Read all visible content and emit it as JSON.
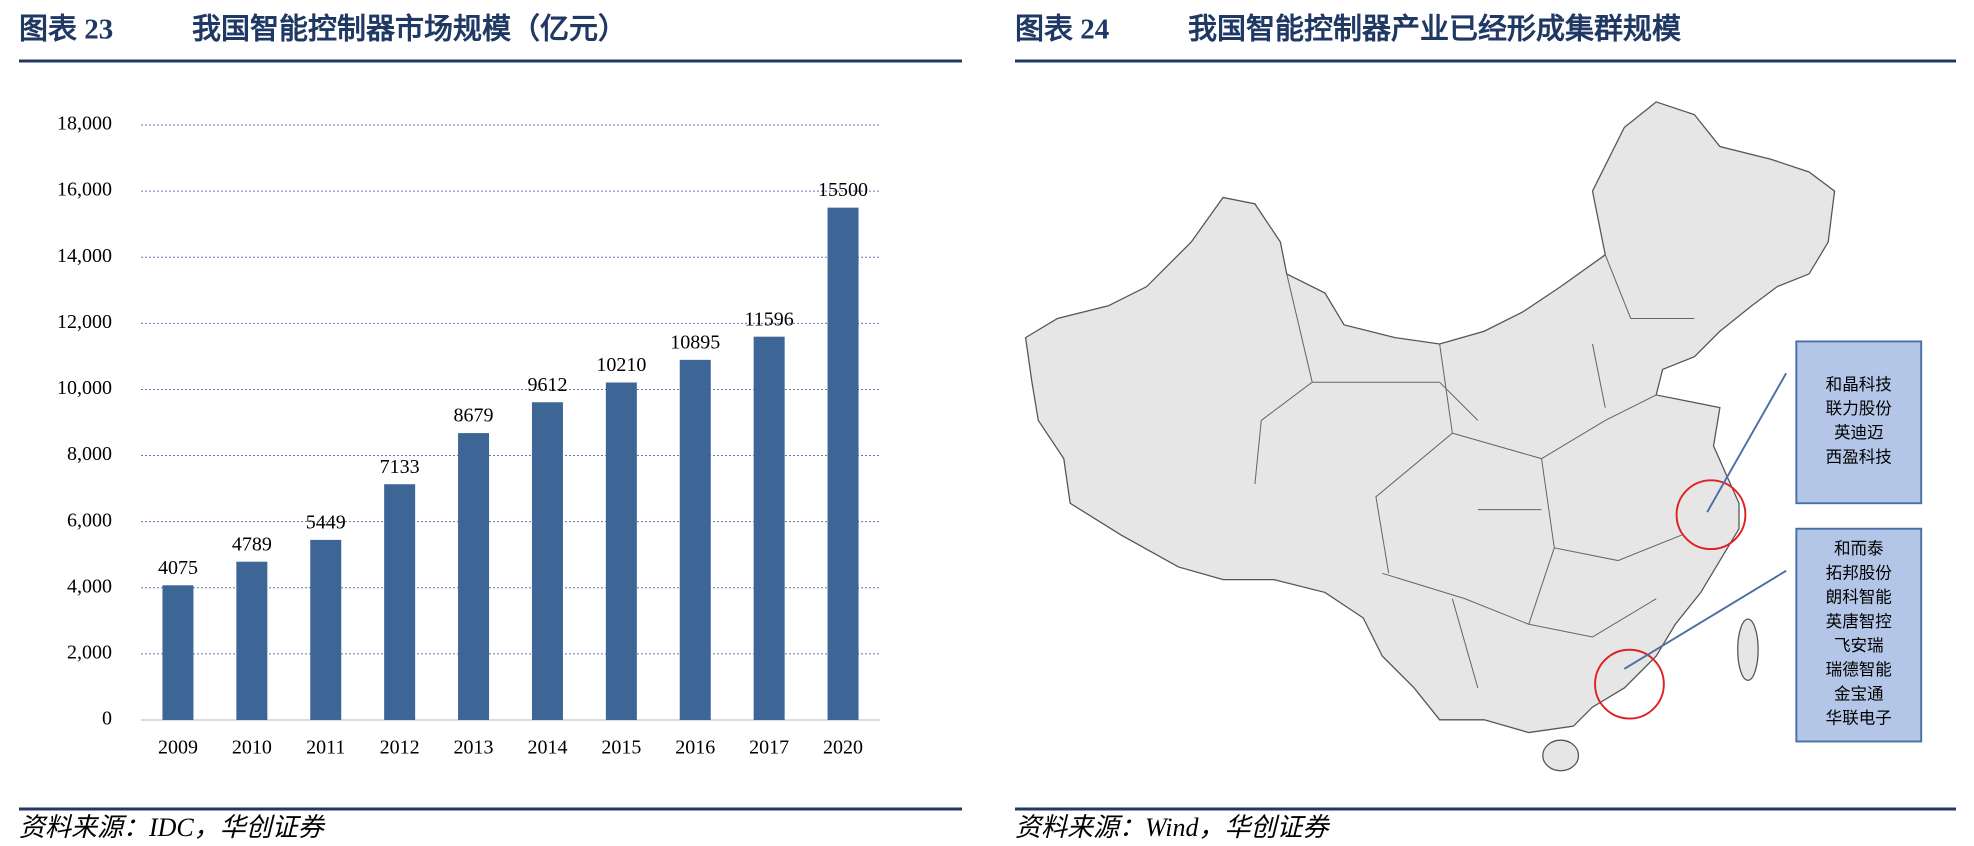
{
  "chart_data": {
    "type": "bar",
    "figure_label": "图表 23",
    "title": "我国智能控制器市场规模（亿元）",
    "categories": [
      "2009",
      "2010",
      "2011",
      "2012",
      "2013",
      "2014",
      "2015",
      "2016",
      "2017",
      "2020"
    ],
    "values": [
      4075,
      4789,
      5449,
      7133,
      8679,
      9612,
      10210,
      10895,
      11596,
      15500
    ],
    "color": "#3d6595",
    "ylim": [
      0,
      18000
    ],
    "yticks": [
      0,
      {
        "value": 2000,
        "label": "2,000"
      },
      {
        "value": 4000,
        "label": "4,000"
      },
      {
        "value": 6000,
        "label": "6,000"
      },
      {
        "value": 8000,
        "label": "8,000"
      },
      {
        "value": 10000,
        "label": "10,000"
      },
      {
        "value": 12000,
        "label": "12,000"
      },
      {
        "value": 14000,
        "label": "14,000"
      },
      {
        "value": 16000,
        "label": "16,000"
      },
      {
        "value": 18000,
        "label": "18,000"
      }
    ],
    "grid": true,
    "source": "资料来源：IDC，华创证券"
  },
  "map": {
    "figure_label": "图表 24",
    "title": "我国智能控制器产业已经形成集群规模",
    "clusters": [
      {
        "companies": [
          "和晶科技",
          "联力股份",
          "英迪迈",
          "西盈科技"
        ]
      },
      {
        "companies": [
          "和而泰",
          "拓邦股份",
          "朗科智能",
          "英唐智控",
          "飞安瑞",
          "瑞德智能",
          "金宝通",
          "华联电子"
        ]
      }
    ],
    "source": "资料来源：Wind，华创证券"
  }
}
